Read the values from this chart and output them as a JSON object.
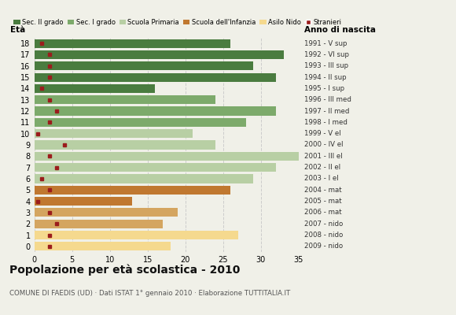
{
  "ages": [
    18,
    17,
    16,
    15,
    14,
    13,
    12,
    11,
    10,
    9,
    8,
    7,
    6,
    5,
    4,
    3,
    2,
    1,
    0
  ],
  "values": [
    26,
    33,
    29,
    32,
    16,
    24,
    32,
    28,
    21,
    24,
    35,
    32,
    29,
    26,
    13,
    19,
    17,
    27,
    18
  ],
  "stranieri": [
    1,
    2,
    2,
    2,
    1,
    2,
    3,
    2,
    0.5,
    4,
    2,
    3,
    1,
    2,
    0.5,
    2,
    3,
    2,
    2
  ],
  "right_labels": [
    "1991 - V sup",
    "1992 - VI sup",
    "1993 - III sup",
    "1994 - II sup",
    "1995 - I sup",
    "1996 - III med",
    "1997 - II med",
    "1998 - I med",
    "1999 - V el",
    "2000 - IV el",
    "2001 - III el",
    "2002 - II el",
    "2003 - I el",
    "2004 - mat",
    "2005 - mat",
    "2006 - mat",
    "2007 - nido",
    "2008 - nido",
    "2009 - nido"
  ],
  "bar_colors": [
    "#4a7c3f",
    "#4a7c3f",
    "#4a7c3f",
    "#4a7c3f",
    "#4a7c3f",
    "#7daa6b",
    "#7daa6b",
    "#7daa6b",
    "#b8cfa4",
    "#b8cfa4",
    "#b8cfa4",
    "#b8cfa4",
    "#b8cfa4",
    "#c07830",
    "#c07830",
    "#d4a560",
    "#d4a560",
    "#f5d98e",
    "#f5d98e"
  ],
  "legend_labels": [
    "Sec. II grado",
    "Sec. I grado",
    "Scuola Primaria",
    "Scuola dell'Infanzia",
    "Asilo Nido",
    "Stranieri"
  ],
  "legend_colors": [
    "#4a7c3f",
    "#7daa6b",
    "#b8cfa4",
    "#c07830",
    "#f5d98e",
    "#9b1c1c"
  ],
  "title": "Popolazione per età scolastica - 2010",
  "subtitle": "COMUNE DI FAEDIS (UD) · Dati ISTAT 1° gennaio 2010 · Elaborazione TUTTITALIA.IT",
  "xlabel_eta": "Età",
  "xlabel_anno": "Anno di nascita",
  "xlim": [
    0,
    35
  ],
  "xticks": [
    0,
    5,
    10,
    15,
    20,
    25,
    30,
    35
  ],
  "grid_color": "#cccccc",
  "bg_color": "#f0f0e8"
}
